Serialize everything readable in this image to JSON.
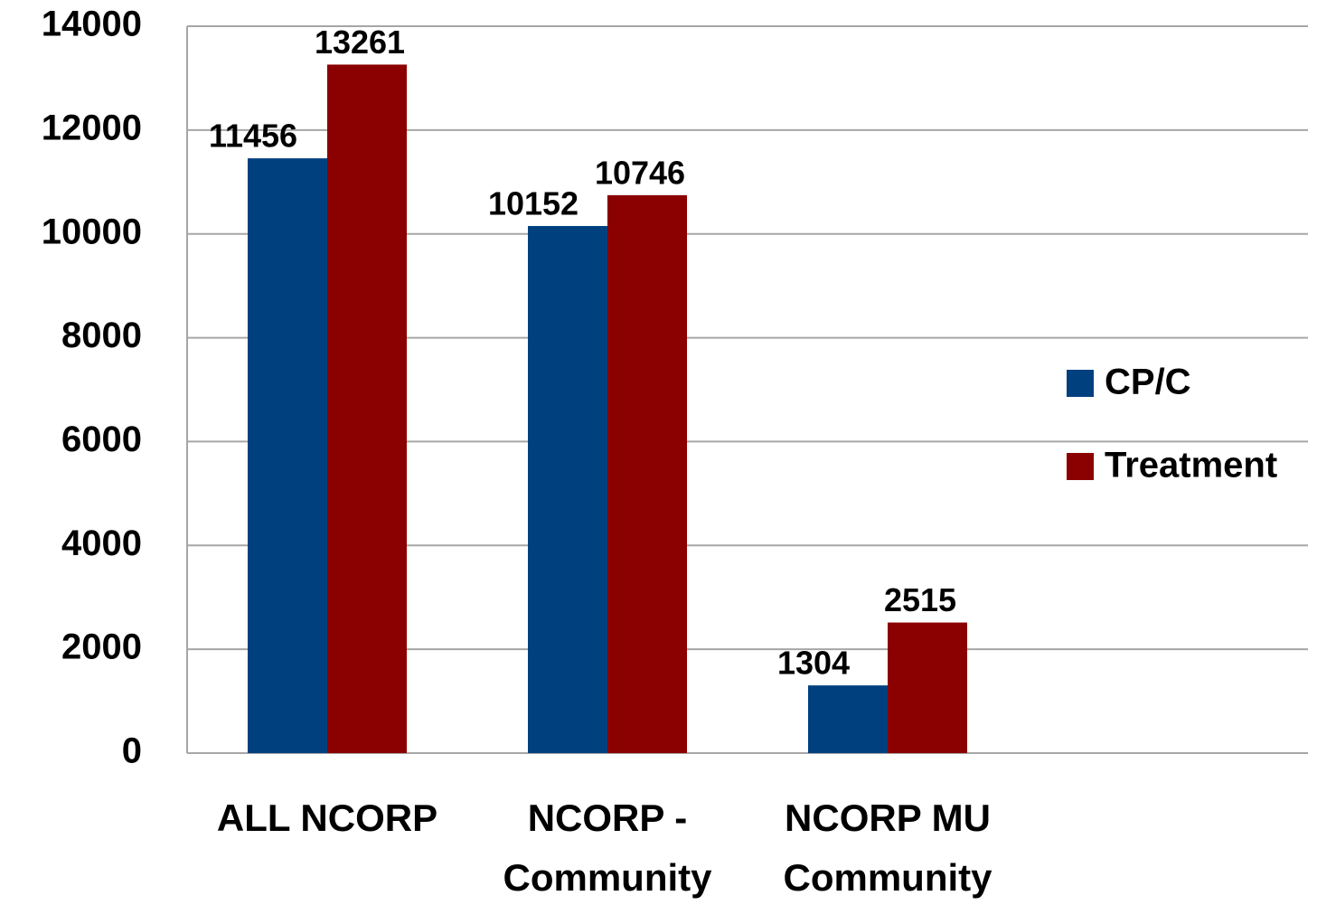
{
  "chart_data": {
    "type": "bar",
    "categories": [
      "ALL NCORP",
      "NCORP - Community",
      "NCORP MU Community"
    ],
    "series": [
      {
        "name": "CP/C",
        "color": "#00407f",
        "values": [
          11456,
          10152,
          1304
        ]
      },
      {
        "name": "Treatment",
        "color": "#8b0000",
        "values": [
          13261,
          10746,
          2515
        ]
      }
    ],
    "ylim": [
      0,
      14000
    ],
    "yticks": [
      0,
      2000,
      4000,
      6000,
      8000,
      10000,
      12000,
      14000
    ],
    "grid": true,
    "legend": "right"
  }
}
